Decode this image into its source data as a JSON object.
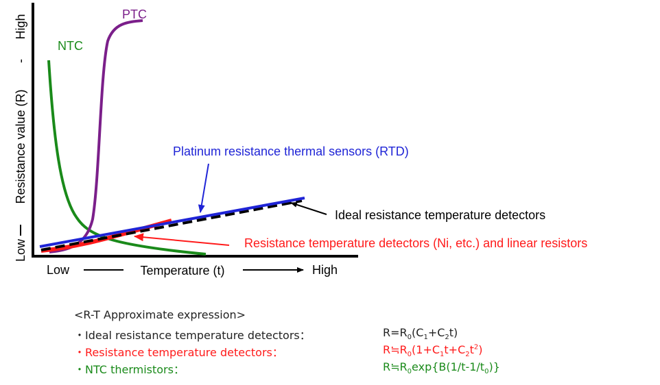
{
  "colors": {
    "ntc": "#1a8a1a",
    "ptc": "#7b1f8a",
    "rtd": "#1f24d6",
    "ideal": "#000000",
    "linear": "#ff1a1a",
    "axis": "#000000"
  },
  "labels": {
    "y_axis": "Resistance value (R)",
    "y_low": "Low",
    "y_high": "High",
    "y_dash": "-",
    "x_low": "Low",
    "x_axis": "Temperature (t)",
    "x_high": "High",
    "ntc": "NTC",
    "ptc": "PTC",
    "rtd": "Platinum resistance thermal sensors (RTD)",
    "ideal": "Ideal resistance temperature detectors",
    "linear": "Resistance temperature detectors (Ni, etc.) and linear resistors"
  },
  "expressions": {
    "heading": "<R-T Approximate expression>",
    "rows": [
      {
        "name": "・Ideal resistance temperature detectors：",
        "formula": "R=R0(C1+C2t)",
        "color": "#222222",
        "parts": [
          {
            "t": "R=R",
            "k": ""
          },
          {
            "t": "0",
            "k": "sub"
          },
          {
            "t": "(C",
            "k": ""
          },
          {
            "t": "1",
            "k": "sub"
          },
          {
            "t": "+C",
            "k": ""
          },
          {
            "t": "2",
            "k": "sub"
          },
          {
            "t": "t)",
            "k": ""
          }
        ]
      },
      {
        "name": "・Resistance temperature detectors：",
        "formula": "R≒R0(1+C1t+C2t2)",
        "color": "#ff1a1a",
        "parts": [
          {
            "t": "R≒R",
            "k": ""
          },
          {
            "t": "0",
            "k": "sub"
          },
          {
            "t": "(1+C",
            "k": ""
          },
          {
            "t": "1",
            "k": "sub"
          },
          {
            "t": "t+C",
            "k": ""
          },
          {
            "t": "2",
            "k": "sub"
          },
          {
            "t": "t",
            "k": ""
          },
          {
            "t": "2",
            "k": "sup"
          },
          {
            "t": ")",
            "k": ""
          }
        ]
      },
      {
        "name": "・NTC thermistors：",
        "formula": "R≒R0exp{B(1/t-1/t0)}",
        "color": "#1a8a1a",
        "parts": [
          {
            "t": "R≒R",
            "k": ""
          },
          {
            "t": "0",
            "k": "sub"
          },
          {
            "t": "exp{B(1/t-1/t",
            "k": ""
          },
          {
            "t": "0",
            "k": "sub"
          },
          {
            "t": ")}",
            "k": ""
          }
        ]
      }
    ]
  }
}
